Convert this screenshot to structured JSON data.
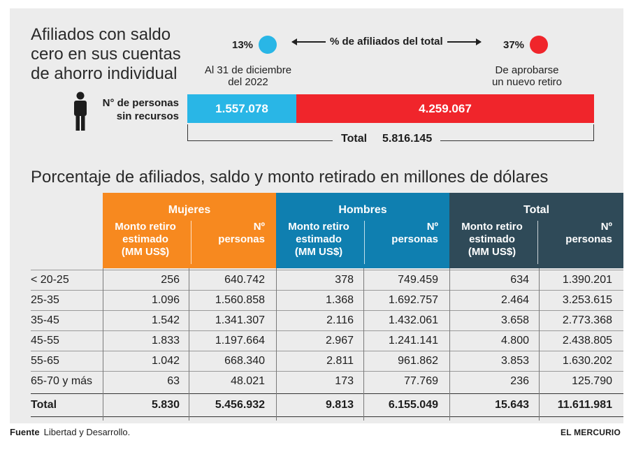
{
  "headline": "Afiliados con saldo\ncero en sus cuentas\nde ahorro individual",
  "colors": {
    "blue": "#29b6e6",
    "red": "#f0252b",
    "orange": "#f7891f",
    "hombres_blue": "#0f7fb0",
    "total_dark": "#2f4a58"
  },
  "percent_compare": {
    "left_value": "13%",
    "middle_label": "% de afiliados del total",
    "right_value": "37%",
    "left_note": "Al 31 de diciembre\ndel 2022",
    "right_note": "De aprobarse\nun nuevo retiro"
  },
  "people_bar": {
    "label": "N° de personas\nsin recursos",
    "icon": "person-icon",
    "total_label": "Total",
    "total_value": "5.816.145"
  },
  "table_title": "Porcentaje de afiliados, saldo y monto retirado en millones de dólares",
  "table": {
    "groups": [
      "Mujeres",
      "Hombres",
      "Total"
    ],
    "sub_headers": [
      "Monto retiro\nestimado\n(MM US$)",
      "Nº\npersonas"
    ],
    "rows": [
      {
        "label": "< 20-25",
        "cells": [
          "256",
          "640.742",
          "378",
          "749.459",
          "634",
          "1.390.201"
        ]
      },
      {
        "label": "25-35",
        "cells": [
          "1.096",
          "1.560.858",
          "1.368",
          "1.692.757",
          "2.464",
          "3.253.615"
        ]
      },
      {
        "label": "35-45",
        "cells": [
          "1.542",
          "1.341.307",
          "2.116",
          "1.432.061",
          "3.658",
          "2.773.368"
        ]
      },
      {
        "label": "45-55",
        "cells": [
          "1.833",
          "1.197.664",
          "2.967",
          "1.241.141",
          "4.800",
          "2.438.805"
        ]
      },
      {
        "label": "55-65",
        "cells": [
          "1.042",
          "668.340",
          "2.811",
          "961.862",
          "3.853",
          "1.630.202"
        ]
      },
      {
        "label": "65-70 y más",
        "cells": [
          "63",
          "48.021",
          "173",
          "77.769",
          "236",
          "125.790"
        ]
      }
    ],
    "total_row": {
      "label": "Total",
      "cells": [
        "5.830",
        "5.456.932",
        "9.813",
        "6.155.049",
        "15.643",
        "11.611.981"
      ]
    }
  },
  "footer": {
    "source_label": "Fuente",
    "source_text": "Libertad y Desarrollo.",
    "brand": "EL MERCURIO"
  },
  "chart_data": {
    "type": "bar",
    "categories": [
      "Al 31 de diciembre del 2022",
      "De aprobarse un nuevo retiro"
    ],
    "values": [
      1557078,
      4259067
    ],
    "value_labels": [
      "1.557.078",
      "4.259.067"
    ],
    "total": 5816145,
    "percent_labels": [
      "13%",
      "37%"
    ]
  }
}
